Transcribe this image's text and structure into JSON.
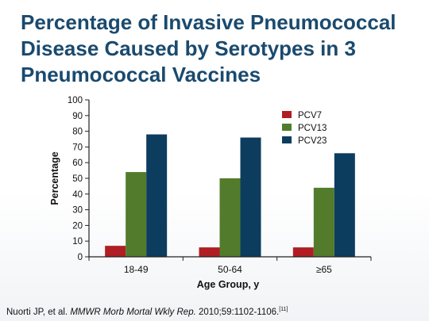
{
  "slide": {
    "title": "Percentage of Invasive Pneumococcal Disease Caused by Serotypes in 3 Pneumococcal Vaccines",
    "citation_authors": "Nuorti JP, et al. ",
    "citation_journal": "MMWR Morb Mortal Wkly Rep.",
    "citation_details": " 2010;59:1102-1106.",
    "citation_ref": "[11]"
  },
  "chart_data": {
    "type": "bar",
    "categories": [
      "18-49",
      "50-64",
      "≥65"
    ],
    "series": [
      {
        "name": "PCV7",
        "values": [
          7,
          6,
          6
        ],
        "color": "#b01e23"
      },
      {
        "name": "PCV13",
        "values": [
          54,
          50,
          44
        ],
        "color": "#527c2c"
      },
      {
        "name": "PCV23",
        "values": [
          78,
          76,
          66
        ],
        "color": "#0d3d5e"
      }
    ],
    "title": "",
    "xlabel": "Age Group, y",
    "ylabel": "Percentage",
    "ylim": [
      0,
      100
    ],
    "yticks": [
      0,
      10,
      20,
      30,
      40,
      50,
      60,
      70,
      80,
      90,
      100
    ],
    "grid": false,
    "legend_position": "top-right"
  }
}
